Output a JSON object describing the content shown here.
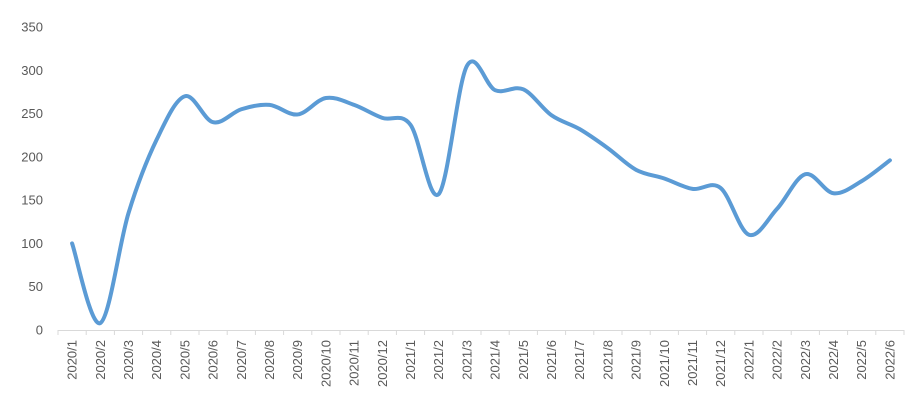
{
  "chart_data": {
    "type": "line",
    "title": "",
    "xlabel": "",
    "ylabel": "",
    "ylim": [
      0,
      350
    ],
    "yticks": [
      "0",
      "50",
      "100",
      "150",
      "200",
      "250",
      "300",
      "350"
    ],
    "grid": false,
    "legend": "none",
    "categories": [
      "2020/1",
      "2020/2",
      "2020/3",
      "2020/4",
      "2020/5",
      "2020/6",
      "2020/7",
      "2020/8",
      "2020/9",
      "2020/10",
      "2020/11",
      "2020/12",
      "2021/1",
      "2021/2",
      "2021/3",
      "2021/4",
      "2021/5",
      "2021/6",
      "2021/7",
      "2021/8",
      "2021/9",
      "2021/10",
      "2021/11",
      "2021/12",
      "2022/1",
      "2022/2",
      "2022/3",
      "2022/4",
      "2022/5",
      "2022/6"
    ],
    "series": [
      {
        "color": "#5b9bd5",
        "smooth": true,
        "values": [
          100,
          8,
          135,
          220,
          270,
          240,
          255,
          260,
          249,
          268,
          260,
          245,
          237,
          157,
          305,
          277,
          278,
          248,
          232,
          210,
          185,
          175,
          163,
          164,
          110,
          140,
          180,
          158,
          172,
          196
        ]
      }
    ]
  }
}
